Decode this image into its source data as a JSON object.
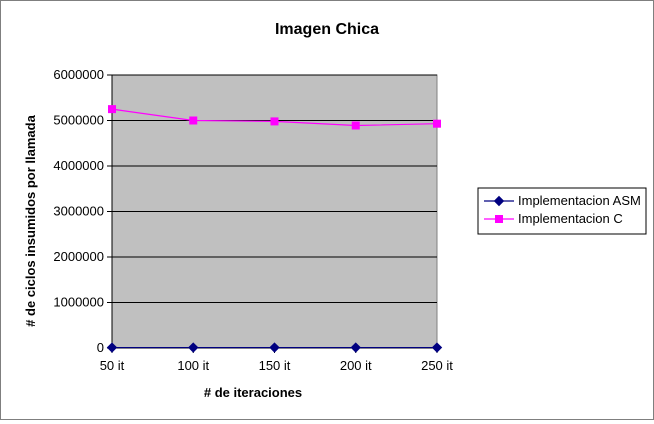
{
  "chart_data": {
    "type": "line",
    "title": "Imagen Chica",
    "xlabel": "# de iteraciones",
    "ylabel": "# de ciclos insumidos por llamada",
    "categories": [
      "50 it",
      "100 it",
      "150 it",
      "200 it",
      "250 it"
    ],
    "ylim": [
      0,
      6000000
    ],
    "yticks": [
      0,
      1000000,
      2000000,
      3000000,
      4000000,
      5000000,
      6000000
    ],
    "grid": true,
    "legend_position": "right",
    "plot_background": "#c0c0c0",
    "series": [
      {
        "name": "Implementacion ASM",
        "values": [
          10000,
          10000,
          10000,
          10000,
          10000
        ],
        "color": "#000080",
        "marker": "diamond"
      },
      {
        "name": "Implementacion C",
        "values": [
          5250000,
          5000000,
          4980000,
          4890000,
          4930000
        ],
        "color": "#ff00ff",
        "marker": "square"
      }
    ]
  }
}
